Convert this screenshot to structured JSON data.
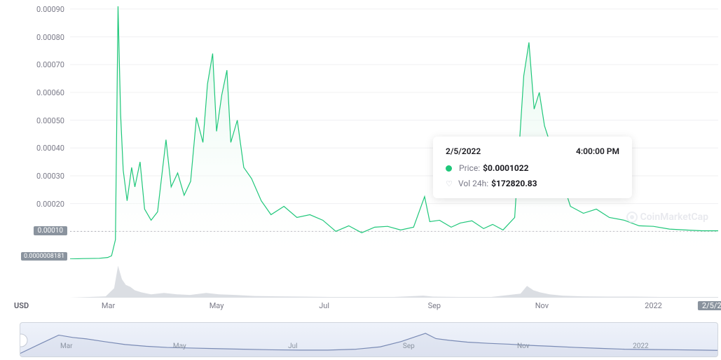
{
  "chart": {
    "type": "area-line",
    "series_color": "#1fc77a",
    "fill_from": "#d9f5e7",
    "fill_to": "#ffffff",
    "line_width": 1.2,
    "background_color": "#ffffff",
    "grid_color": "#f0f0f2",
    "hover_line_color": "#b0b0b8",
    "y_axis": {
      "label_color": "#7a7a88",
      "label_fontsize": 11,
      "min": 0,
      "max": 0.00092,
      "ticks": [
        {
          "v": 0.0009,
          "label": "0.00090"
        },
        {
          "v": 0.0008,
          "label": "0.00080"
        },
        {
          "v": 0.0007,
          "label": "0.00070"
        },
        {
          "v": 0.0006,
          "label": "0.00060"
        },
        {
          "v": 0.0005,
          "label": "0.00050"
        },
        {
          "v": 0.0004,
          "label": "0.00040"
        },
        {
          "v": 0.0003,
          "label": "0.00030"
        },
        {
          "v": 0.0002,
          "label": "0.00020"
        },
        {
          "v": 0.0001,
          "label": "0.00010"
        }
      ],
      "current_badge": {
        "v": 0.0001,
        "label": "0.00010",
        "bg": "#8a939e",
        "fg": "#ffffff"
      },
      "origin_badge": {
        "v": 8.181e-07,
        "label": "0.0000008181",
        "bg": "#8a939e",
        "fg": "#ffffff"
      }
    },
    "x_axis": {
      "label_color": "#7a7a88",
      "label_fontsize": 11,
      "currency_label": "USD",
      "start": "2021-02-01",
      "end": "2022-02-05",
      "ticks": [
        {
          "pos": 0.059,
          "label": "Mar"
        },
        {
          "pos": 0.226,
          "label": "May"
        },
        {
          "pos": 0.392,
          "label": "Jul"
        },
        {
          "pos": 0.562,
          "label": "Sep"
        },
        {
          "pos": 0.728,
          "label": "Nov"
        },
        {
          "pos": 0.9,
          "label": "2022"
        }
      ],
      "current_badge": {
        "pos": 1.0,
        "label": "2/5/2022",
        "bg": "#8a939e",
        "fg": "#ffffff"
      }
    },
    "price_series": [
      [
        0.0,
        8e-07
      ],
      [
        0.02,
        2e-06
      ],
      [
        0.045,
        3e-06
      ],
      [
        0.058,
        6e-06
      ],
      [
        0.064,
        1.2e-05
      ],
      [
        0.07,
        7e-05
      ],
      [
        0.074,
        0.00091
      ],
      [
        0.078,
        0.00052
      ],
      [
        0.082,
        0.00032
      ],
      [
        0.088,
        0.00021
      ],
      [
        0.095,
        0.00033
      ],
      [
        0.1,
        0.00026
      ],
      [
        0.108,
        0.00035
      ],
      [
        0.115,
        0.00018
      ],
      [
        0.125,
        0.00014
      ],
      [
        0.135,
        0.00017
      ],
      [
        0.148,
        0.00043
      ],
      [
        0.156,
        0.00026
      ],
      [
        0.166,
        0.00031
      ],
      [
        0.176,
        0.00023
      ],
      [
        0.186,
        0.00028
      ],
      [
        0.195,
        0.00051
      ],
      [
        0.205,
        0.00042
      ],
      [
        0.212,
        0.00063
      ],
      [
        0.22,
        0.00074
      ],
      [
        0.226,
        0.00046
      ],
      [
        0.234,
        0.00059
      ],
      [
        0.242,
        0.00068
      ],
      [
        0.248,
        0.00042
      ],
      [
        0.258,
        0.0005
      ],
      [
        0.268,
        0.00033
      ],
      [
        0.28,
        0.00029
      ],
      [
        0.295,
        0.00021
      ],
      [
        0.31,
        0.00016
      ],
      [
        0.33,
        0.00019
      ],
      [
        0.35,
        0.00015
      ],
      [
        0.37,
        0.00016
      ],
      [
        0.39,
        0.00014
      ],
      [
        0.41,
        0.0001
      ],
      [
        0.43,
        0.00012
      ],
      [
        0.45,
        9.5e-05
      ],
      [
        0.47,
        0.000115
      ],
      [
        0.49,
        0.000118
      ],
      [
        0.51,
        0.000105
      ],
      [
        0.53,
        0.000115
      ],
      [
        0.547,
        0.000225
      ],
      [
        0.555,
        0.000135
      ],
      [
        0.57,
        0.00014
      ],
      [
        0.588,
        0.000115
      ],
      [
        0.602,
        0.00013
      ],
      [
        0.62,
        0.000138
      ],
      [
        0.638,
        0.00011
      ],
      [
        0.652,
        0.000125
      ],
      [
        0.668,
        0.000105
      ],
      [
        0.686,
        0.00015
      ],
      [
        0.7,
        0.00066
      ],
      [
        0.708,
        0.00078
      ],
      [
        0.716,
        0.00054
      ],
      [
        0.724,
        0.0006
      ],
      [
        0.732,
        0.00048
      ],
      [
        0.772,
        0.00019
      ],
      [
        0.792,
        0.000165
      ],
      [
        0.812,
        0.00018
      ],
      [
        0.832,
        0.00015
      ],
      [
        0.855,
        0.00014
      ],
      [
        0.878,
        0.00012
      ],
      [
        0.9,
        0.000118
      ],
      [
        0.925,
        0.000108
      ],
      [
        0.95,
        0.000105
      ],
      [
        0.975,
        0.000102
      ],
      [
        1.0,
        0.000102
      ]
    ]
  },
  "volume": {
    "color": "#cfd3da",
    "max": 1.0,
    "series": [
      [
        0.0,
        0.0
      ],
      [
        0.03,
        0.02
      ],
      [
        0.055,
        0.04
      ],
      [
        0.068,
        0.28
      ],
      [
        0.074,
        0.95
      ],
      [
        0.08,
        0.55
      ],
      [
        0.086,
        0.38
      ],
      [
        0.093,
        0.32
      ],
      [
        0.1,
        0.22
      ],
      [
        0.11,
        0.16
      ],
      [
        0.125,
        0.1
      ],
      [
        0.145,
        0.14
      ],
      [
        0.165,
        0.1
      ],
      [
        0.185,
        0.08
      ],
      [
        0.21,
        0.14
      ],
      [
        0.23,
        0.1
      ],
      [
        0.255,
        0.08
      ],
      [
        0.285,
        0.05
      ],
      [
        0.32,
        0.04
      ],
      [
        0.36,
        0.03
      ],
      [
        0.4,
        0.02
      ],
      [
        0.45,
        0.02
      ],
      [
        0.5,
        0.02
      ],
      [
        0.545,
        0.06
      ],
      [
        0.56,
        0.03
      ],
      [
        0.6,
        0.02
      ],
      [
        0.65,
        0.02
      ],
      [
        0.695,
        0.12
      ],
      [
        0.705,
        0.35
      ],
      [
        0.715,
        0.22
      ],
      [
        0.725,
        0.16
      ],
      [
        0.74,
        0.1
      ],
      [
        0.76,
        0.06
      ],
      [
        0.79,
        0.04
      ],
      [
        0.83,
        0.03
      ],
      [
        0.87,
        0.03
      ],
      [
        0.91,
        0.02
      ],
      [
        0.96,
        0.02
      ],
      [
        1.0,
        0.02
      ]
    ]
  },
  "range": {
    "line_color": "#7a8bb5",
    "bg_from": "#eef2fa",
    "bg_to": "#e4e9f5",
    "ticks": [
      {
        "pos": 0.066,
        "label": "Mar"
      },
      {
        "pos": 0.228,
        "label": "May"
      },
      {
        "pos": 0.39,
        "label": "Jul"
      },
      {
        "pos": 0.556,
        "label": "Sep"
      },
      {
        "pos": 0.72,
        "label": "Nov"
      },
      {
        "pos": 0.888,
        "label": "2022"
      }
    ],
    "series": [
      [
        0.0,
        0.06
      ],
      [
        0.03,
        0.4
      ],
      [
        0.055,
        0.68
      ],
      [
        0.075,
        0.6
      ],
      [
        0.095,
        0.55
      ],
      [
        0.12,
        0.46
      ],
      [
        0.15,
        0.36
      ],
      [
        0.18,
        0.3
      ],
      [
        0.21,
        0.26
      ],
      [
        0.245,
        0.24
      ],
      [
        0.28,
        0.22
      ],
      [
        0.32,
        0.2
      ],
      [
        0.36,
        0.18
      ],
      [
        0.4,
        0.17
      ],
      [
        0.44,
        0.17
      ],
      [
        0.48,
        0.2
      ],
      [
        0.515,
        0.28
      ],
      [
        0.545,
        0.46
      ],
      [
        0.565,
        0.62
      ],
      [
        0.58,
        0.74
      ],
      [
        0.595,
        0.56
      ],
      [
        0.615,
        0.5
      ],
      [
        0.64,
        0.44
      ],
      [
        0.67,
        0.4
      ],
      [
        0.7,
        0.37
      ],
      [
        0.73,
        0.33
      ],
      [
        0.76,
        0.3
      ],
      [
        0.795,
        0.26
      ],
      [
        0.83,
        0.23
      ],
      [
        0.865,
        0.2
      ],
      [
        0.9,
        0.19
      ],
      [
        0.94,
        0.18
      ],
      [
        0.975,
        0.17
      ],
      [
        1.0,
        0.16
      ]
    ]
  },
  "tooltip": {
    "date": "2/5/2022",
    "time": "4:00:00 PM",
    "price_label": "Price:",
    "price_value": "$0.0001022",
    "price_dot_color": "#1fc77a",
    "vol_label": "Vol 24h:",
    "vol_value": "$172820.83",
    "vol_icon_color": "#b8bec9"
  },
  "watermark": {
    "text": "CoinMarketCap",
    "color": "#e8e9ee"
  }
}
